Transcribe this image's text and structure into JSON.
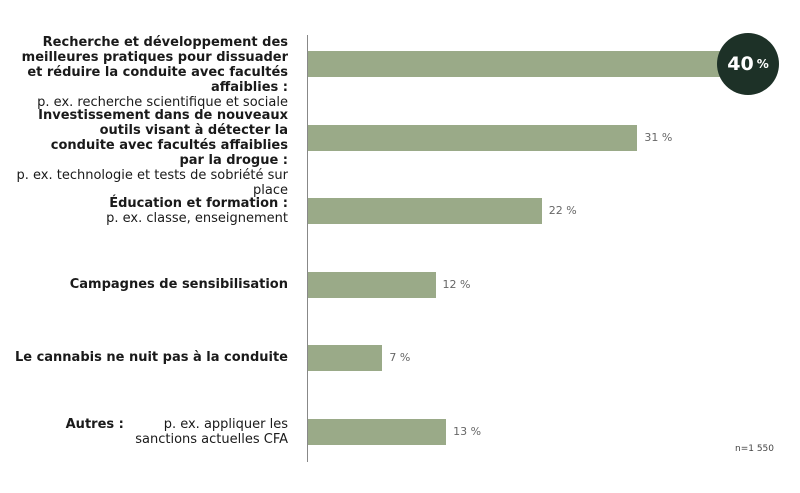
{
  "colors": {
    "bar": "#9aaa88",
    "badge": "#1d3127"
  },
  "chart_data": {
    "type": "bar",
    "orientation": "horizontal",
    "unit": "%",
    "xlim": [
      0,
      40
    ],
    "grid": false,
    "categories": [
      {
        "bold": "Recherche et développement des meilleures pratiques pour dissuader et réduire la conduite avec facultés affaiblies :",
        "normal": "p. ex. recherche scientifique et sociale"
      },
      {
        "bold": "Investissement dans de nouveaux outils visant à détecter la conduite avec facultés affaiblies par la drogue :",
        "normal": "p. ex. technologie et tests de sobriété sur place"
      },
      {
        "bold": "Éducation et formation :",
        "normal": "p. ex. classe, enseignement"
      },
      {
        "bold": "Campagnes de sensibilisation",
        "normal": ""
      },
      {
        "bold": "Le cannabis ne nuit pas à la conduite",
        "normal": ""
      },
      {
        "bold": "Autres :",
        "normal": "p. ex. appliquer les sanctions actuelles CFA"
      }
    ],
    "values": [
      40,
      31,
      22,
      12,
      7,
      13
    ],
    "value_labels": [
      "40",
      "31 %",
      "22 %",
      "12 %",
      "7 %",
      "13 %"
    ],
    "highlight_label": {
      "number": "40",
      "suffix": "%"
    },
    "note": "n=1 550"
  }
}
